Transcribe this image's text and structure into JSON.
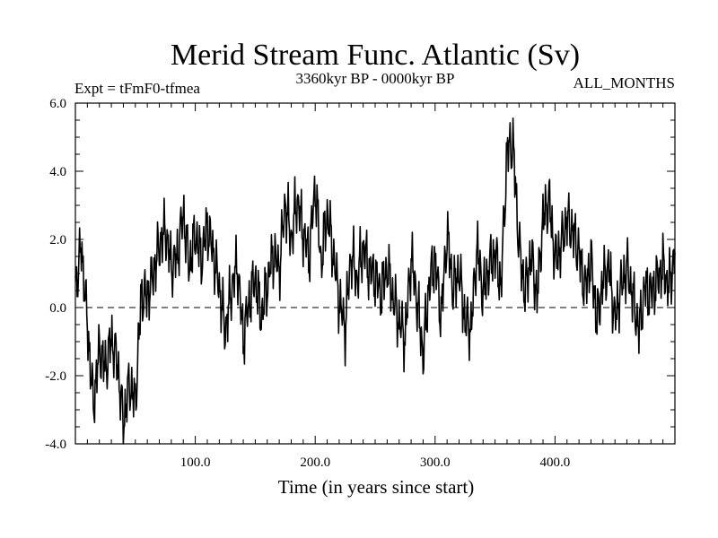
{
  "chart_data": {
    "type": "line",
    "title": "Merid Stream Func. Atlantic (Sv)",
    "subtitle_left": "Expt = tFmF0-tfmea",
    "subtitle_center": "3360kyr BP - 0000kyr BP",
    "subtitle_right": "ALL_MONTHS",
    "xlabel": "Time (in years since start)",
    "ylabel": "",
    "xlim": [
      0,
      500
    ],
    "ylim": [
      -4.0,
      6.0
    ],
    "xticks": [
      100,
      200,
      300,
      400
    ],
    "xtick_labels": [
      "100.0",
      "200.0",
      "300.0",
      "400.0"
    ],
    "yticks": [
      -4.0,
      -2.0,
      0.0,
      2.0,
      4.0,
      6.0
    ],
    "ytick_labels": [
      "-4.0",
      "-2.0",
      "0.0",
      "2.0",
      "4.0",
      "6.0"
    ],
    "reference_line": {
      "y": 0.0,
      "style": "dashed"
    },
    "series": [
      {
        "name": "Merid Stream Func. Atlantic",
        "color": "#000000",
        "x": [
          0,
          5,
          10,
          15,
          20,
          25,
          30,
          35,
          40,
          45,
          50,
          55,
          60,
          65,
          70,
          75,
          80,
          85,
          90,
          95,
          100,
          105,
          110,
          115,
          120,
          125,
          130,
          135,
          140,
          145,
          150,
          155,
          160,
          165,
          170,
          175,
          180,
          185,
          190,
          195,
          200,
          205,
          210,
          215,
          220,
          225,
          230,
          235,
          240,
          245,
          250,
          255,
          260,
          265,
          270,
          275,
          280,
          285,
          290,
          295,
          300,
          305,
          310,
          315,
          320,
          325,
          330,
          335,
          340,
          345,
          350,
          355,
          360,
          365,
          370,
          375,
          380,
          385,
          390,
          395,
          400,
          405,
          410,
          415,
          420,
          425,
          430,
          435,
          440,
          445,
          450,
          455,
          460,
          465,
          470,
          475,
          480,
          485,
          490,
          495,
          500
        ],
        "values": [
          0.5,
          1.8,
          -0.5,
          -2.9,
          -1.2,
          -1.8,
          -0.9,
          -1.6,
          -3.4,
          -2.2,
          -2.8,
          0.4,
          0.3,
          1.0,
          1.8,
          2.3,
          1.2,
          1.5,
          2.8,
          1.2,
          2.2,
          1.4,
          2.4,
          1.6,
          0.6,
          -0.7,
          0.5,
          1.3,
          -0.9,
          0.2,
          0.9,
          -0.3,
          0.7,
          1.6,
          1.1,
          3.1,
          2.0,
          3.2,
          2.2,
          1.5,
          3.6,
          1.3,
          2.8,
          1.6,
          0.2,
          -0.6,
          1.6,
          0.8,
          1.8,
          1.1,
          0.9,
          0.4,
          1.2,
          0.3,
          -0.4,
          -0.9,
          1.5,
          0.2,
          -1.4,
          0.7,
          1.4,
          -0.3,
          2.2,
          0.5,
          1.1,
          -0.4,
          -0.6,
          1.8,
          0.4,
          1.2,
          1.6,
          0.6,
          4.6,
          4.8,
          1.8,
          0.4,
          1.6,
          0.3,
          2.6,
          3.2,
          1.4,
          1.8,
          2.6,
          2.2,
          1.6,
          0.5,
          1.4,
          -0.4,
          0.8,
          1.2,
          -0.4,
          0.6,
          1.2,
          0.3,
          -0.7,
          0.6,
          0.4,
          0.8,
          1.2,
          0.6,
          1.6
        ]
      }
    ]
  }
}
